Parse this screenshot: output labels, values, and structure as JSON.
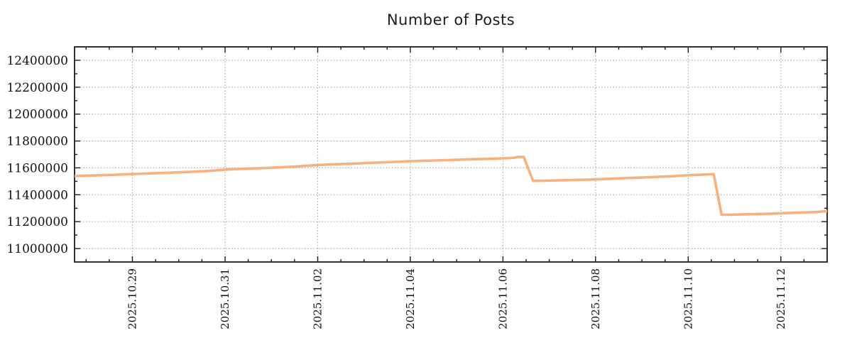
{
  "title": "Number of Posts",
  "colors": {
    "line": "#f7b17c",
    "grid": "#a8a8a8",
    "axis": "#1a1a1a",
    "text": "#111111",
    "background": "#ffffff"
  },
  "chart_data": {
    "type": "line",
    "title": "Number of Posts",
    "xlabel": "",
    "ylabel": "",
    "legend": "none",
    "grid": "dotted",
    "x_axis": {
      "unit_note": "decimal days since 2025-10-27 18:00",
      "range": [
        0,
        16.25
      ],
      "minor_tick_interval_days": 0.5,
      "ticks": [
        {
          "t": 1.25,
          "label": "2025.10.29"
        },
        {
          "t": 3.25,
          "label": "2025.10.31"
        },
        {
          "t": 5.25,
          "label": "2025.11.02"
        },
        {
          "t": 7.25,
          "label": "2025.11.04"
        },
        {
          "t": 9.25,
          "label": "2025.11.06"
        },
        {
          "t": 11.25,
          "label": "2025.11.08"
        },
        {
          "t": 13.25,
          "label": "2025.11.10"
        },
        {
          "t": 15.25,
          "label": "2025.11.12"
        }
      ]
    },
    "y_axis": {
      "range": [
        10900000,
        12500000
      ],
      "minor_tick_interval": 100000,
      "ticks": [
        {
          "v": 11000000,
          "label": "11000000"
        },
        {
          "v": 11200000,
          "label": "11200000"
        },
        {
          "v": 11400000,
          "label": "11400000"
        },
        {
          "v": 11600000,
          "label": "11600000"
        },
        {
          "v": 11800000,
          "label": "11800000"
        },
        {
          "v": 12000000,
          "label": "12000000"
        },
        {
          "v": 12200000,
          "label": "12200000"
        },
        {
          "v": 12400000,
          "label": "12400000"
        }
      ]
    },
    "series": [
      {
        "name": "number-of-posts",
        "color": "#f7b17c",
        "points": [
          [
            0.0,
            11539000
          ],
          [
            0.2,
            11542000
          ],
          [
            0.5,
            11545000
          ],
          [
            0.8,
            11548000
          ],
          [
            1.05,
            11551000
          ],
          [
            1.3,
            11555000
          ],
          [
            1.55,
            11558000
          ],
          [
            1.8,
            11561000
          ],
          [
            2.05,
            11564000
          ],
          [
            2.3,
            11568000
          ],
          [
            2.55,
            11571000
          ],
          [
            2.8,
            11575000
          ],
          [
            3.05,
            11581000
          ],
          [
            3.3,
            11588000
          ],
          [
            3.55,
            11592000
          ],
          [
            3.8,
            11595000
          ],
          [
            4.05,
            11598000
          ],
          [
            4.3,
            11602000
          ],
          [
            4.55,
            11606000
          ],
          [
            4.8,
            11610000
          ],
          [
            5.05,
            11617000
          ],
          [
            5.3,
            11622000
          ],
          [
            5.55,
            11626000
          ],
          [
            5.8,
            11629000
          ],
          [
            6.05,
            11632000
          ],
          [
            6.3,
            11636000
          ],
          [
            6.55,
            11640000
          ],
          [
            6.8,
            11643000
          ],
          [
            7.05,
            11646000
          ],
          [
            7.3,
            11650000
          ],
          [
            7.55,
            11653000
          ],
          [
            7.8,
            11655000
          ],
          [
            8.05,
            11658000
          ],
          [
            8.3,
            11661000
          ],
          [
            8.55,
            11664000
          ],
          [
            8.8,
            11666000
          ],
          [
            9.05,
            11668000
          ],
          [
            9.3,
            11672000
          ],
          [
            9.5,
            11675000
          ],
          [
            9.56,
            11682000
          ],
          [
            9.7,
            11681000
          ],
          [
            9.9,
            11503000
          ],
          [
            10.2,
            11505000
          ],
          [
            10.5,
            11508000
          ],
          [
            10.8,
            11510000
          ],
          [
            11.1,
            11513000
          ],
          [
            11.4,
            11517000
          ],
          [
            11.7,
            11521000
          ],
          [
            12.0,
            11525000
          ],
          [
            12.3,
            11529000
          ],
          [
            12.6,
            11533000
          ],
          [
            12.9,
            11538000
          ],
          [
            13.2,
            11544000
          ],
          [
            13.5,
            11549000
          ],
          [
            13.8,
            11553000
          ],
          [
            13.97,
            11251000
          ],
          [
            14.2,
            11252000
          ],
          [
            14.5,
            11255000
          ],
          [
            14.8,
            11257000
          ],
          [
            15.1,
            11260000
          ],
          [
            15.4,
            11264000
          ],
          [
            15.7,
            11268000
          ],
          [
            16.0,
            11272000
          ],
          [
            16.25,
            11277000
          ]
        ]
      }
    ]
  }
}
